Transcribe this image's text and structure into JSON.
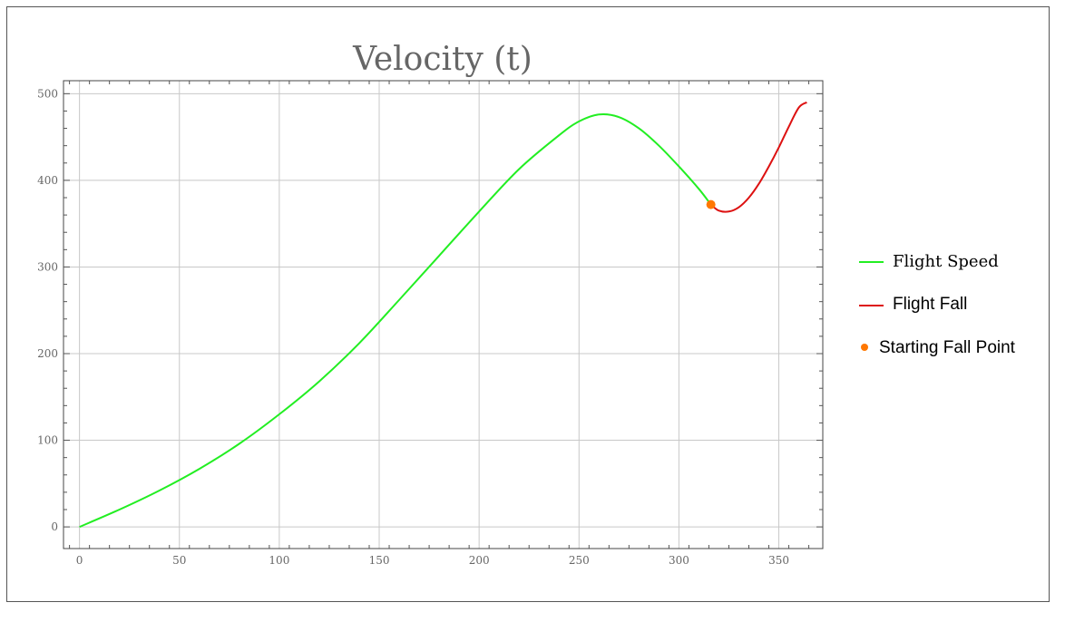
{
  "chart_data": {
    "type": "line",
    "title": "Velocity (t)",
    "xlim": [
      -8,
      372
    ],
    "ylim": [
      -25,
      515
    ],
    "x_ticks": [
      0,
      50,
      100,
      150,
      200,
      250,
      300,
      350
    ],
    "y_ticks": [
      0,
      100,
      200,
      300,
      400,
      500
    ],
    "grid": true,
    "legend_position": "right",
    "series": [
      {
        "name": "Flight Speed",
        "color": "#22ee22",
        "type": "line",
        "x": [
          0,
          20,
          40,
          60,
          80,
          100,
          120,
          140,
          160,
          180,
          200,
          220,
          240,
          250,
          260,
          270,
          280,
          290,
          300,
          310,
          316
        ],
        "y": [
          0,
          20,
          42,
          67,
          96,
          130,
          168,
          212,
          262,
          313,
          364,
          413,
          452,
          468,
          476,
          473,
          460,
          440,
          416,
          390,
          372
        ]
      },
      {
        "name": "Flight Fall",
        "color": "#dd1111",
        "type": "line",
        "x": [
          316,
          320,
          325,
          330,
          335,
          340,
          345,
          350,
          355,
          360,
          364
        ],
        "y": [
          372,
          365,
          364,
          369,
          380,
          396,
          416,
          438,
          462,
          484,
          490
        ]
      },
      {
        "name": "Starting Fall Point",
        "color": "#ff7700",
        "type": "scatter",
        "x": [
          316
        ],
        "y": [
          372
        ]
      }
    ]
  }
}
